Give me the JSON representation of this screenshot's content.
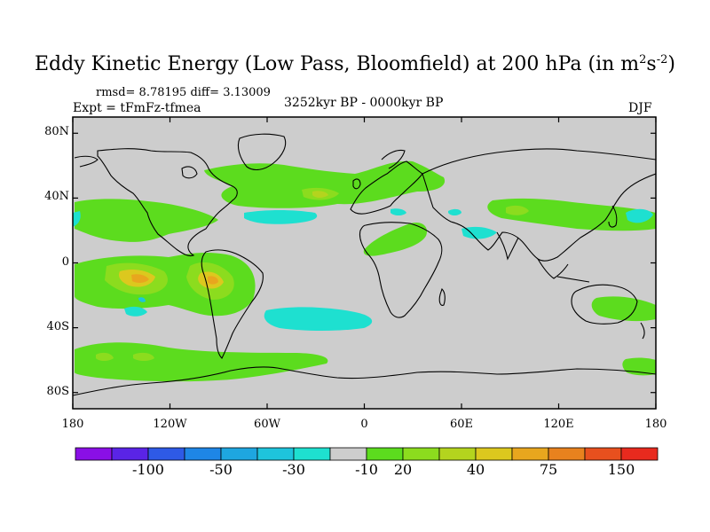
{
  "title": {
    "main": "Eddy Kinetic Energy (Low Pass, Bloomfield) at 200 hPa (in m",
    "sup1": "2",
    "mid": "s",
    "sup2": "-2",
    "close": ")"
  },
  "stats": "rmsd= 8.78195 diff= 3.13009",
  "expt": "Expt = tFmFz-tfmea",
  "period": "3252kyr BP - 0000kyr BP",
  "season": "DJF",
  "map": {
    "lon_range": [
      -180,
      180
    ],
    "lat_range": [
      -90,
      90
    ],
    "lat_ticks": [
      {
        "value": 80,
        "label": "80N"
      },
      {
        "value": 40,
        "label": "40N"
      },
      {
        "value": 0,
        "label": "0"
      },
      {
        "value": -40,
        "label": "40S"
      },
      {
        "value": -80,
        "label": "80S"
      }
    ],
    "lon_ticks": [
      {
        "value": -180,
        "label": "180"
      },
      {
        "value": -120,
        "label": "120W"
      },
      {
        "value": -60,
        "label": "60W"
      },
      {
        "value": 0,
        "label": "0"
      },
      {
        "value": 60,
        "label": "60E"
      },
      {
        "value": 120,
        "label": "120E"
      },
      {
        "value": 180,
        "label": "180"
      }
    ],
    "background_color": "#cdcdcd"
  },
  "colorbar": {
    "colors": [
      "#8a0fe6",
      "#5a24e6",
      "#2e5ae6",
      "#1e86e6",
      "#1ea6e0",
      "#1ec4dc",
      "#1ee0d0",
      "#cdcdcd",
      "#5cdc1e",
      "#8cdc1e",
      "#b4d41e",
      "#dcc81e",
      "#e8a61e",
      "#e8821e",
      "#e8501e",
      "#e82a1e"
    ],
    "labels": [
      {
        "after_index": 1,
        "text": "-100"
      },
      {
        "after_index": 3,
        "text": "-50"
      },
      {
        "after_index": 5,
        "text": "-30"
      },
      {
        "after_index": 7,
        "text": "-10"
      },
      {
        "after_index": 8,
        "text": "20"
      },
      {
        "after_index": 10,
        "text": "40"
      },
      {
        "after_index": 12,
        "text": "75"
      },
      {
        "after_index": 14,
        "text": "150"
      }
    ]
  }
}
